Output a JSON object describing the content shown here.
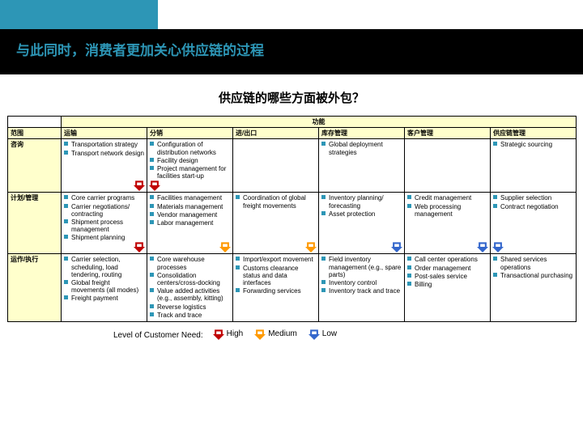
{
  "colors": {
    "teal": "#2d96b6",
    "highlight": "#ffffcc",
    "high": "#c00000",
    "medium": "#ff9900",
    "low": "#3366cc"
  },
  "header": {
    "title": "与此同时，消费者更加关心供应链的过程"
  },
  "subtitle": "供应链的哪些方面被外包？",
  "functions_label": "功能",
  "scope_label": "范围",
  "columns": [
    {
      "key": "transport",
      "label": "运输"
    },
    {
      "key": "distribution",
      "label": "分销"
    },
    {
      "key": "import_export",
      "label": "进/出口"
    },
    {
      "key": "inventory",
      "label": "库存管理"
    },
    {
      "key": "customer",
      "label": "客户管理"
    },
    {
      "key": "supply_chain",
      "label": "供应链管理"
    }
  ],
  "rows": [
    {
      "key": "consult",
      "label": "咨询",
      "cells": [
        {
          "level": "high",
          "arrow_align": "right",
          "items": [
            "Transportation strategy",
            "Transport network design"
          ]
        },
        {
          "level": "high",
          "arrow_align": "left",
          "items": [
            "Configuration of distribution networks",
            "Facility design",
            "Project management for facilities start-up"
          ]
        },
        {
          "level": null,
          "items": []
        },
        {
          "level": null,
          "items": [
            "Global deployment strategies"
          ]
        },
        {
          "level": null,
          "items": []
        },
        {
          "level": null,
          "items": [
            "Strategic sourcing"
          ]
        }
      ]
    },
    {
      "key": "plan",
      "label": "计划/管理",
      "cells": [
        {
          "level": "high",
          "arrow_align": "right",
          "items": [
            "Core carrier programs",
            "Carrier negotiations/ contracting",
            "Shipment process management",
            "Shipment planning"
          ]
        },
        {
          "level": "medium",
          "arrow_align": "right",
          "items": [
            "Facilities management",
            "Materials management",
            "Vendor management",
            "Labor management"
          ]
        },
        {
          "level": "medium",
          "arrow_align": "right",
          "items": [
            "Coordination of global freight movements"
          ]
        },
        {
          "level": "low",
          "arrow_align": "right",
          "items": [
            "Inventory planning/ forecasting",
            "Asset protection"
          ]
        },
        {
          "level": "low",
          "arrow_align": "right",
          "items": [
            "Credit management",
            "Web processing management"
          ]
        },
        {
          "level": "low",
          "arrow_align": "left",
          "items": [
            "Supplier selection",
            "Contract negotiation"
          ]
        }
      ]
    },
    {
      "key": "operate",
      "label": "运作/执行",
      "cells": [
        {
          "level": null,
          "items": [
            "Carrier selection, scheduling, load tendering, routing",
            "Global freight movements (all modes)",
            "Freight payment"
          ]
        },
        {
          "level": null,
          "items": [
            "Core warehouse processes",
            "Consolidation centers/cross-docking",
            "Value added activities (e.g., assembly, kitting)",
            "Reverse logistics",
            "Track and trace"
          ]
        },
        {
          "level": null,
          "items": [
            "Import/export movement",
            "Customs clearance status and data interfaces",
            "Forwarding services"
          ]
        },
        {
          "level": null,
          "items": [
            "Field inventory management (e.g., spare parts)",
            "Inventory control",
            "Inventory track and trace"
          ]
        },
        {
          "level": null,
          "items": [
            "Call center operations",
            "Order management",
            "Post-sales service",
            "Billing"
          ]
        },
        {
          "level": null,
          "items": [
            "Shared services operations",
            "Transactional purchasing"
          ]
        }
      ]
    }
  ],
  "legend": {
    "label": "Level of Customer Need:",
    "levels": [
      {
        "key": "high",
        "label": "High",
        "color": "#c00000"
      },
      {
        "key": "medium",
        "label": "Medium",
        "color": "#ff9900"
      },
      {
        "key": "low",
        "label": "Low",
        "color": "#3366cc"
      }
    ]
  }
}
